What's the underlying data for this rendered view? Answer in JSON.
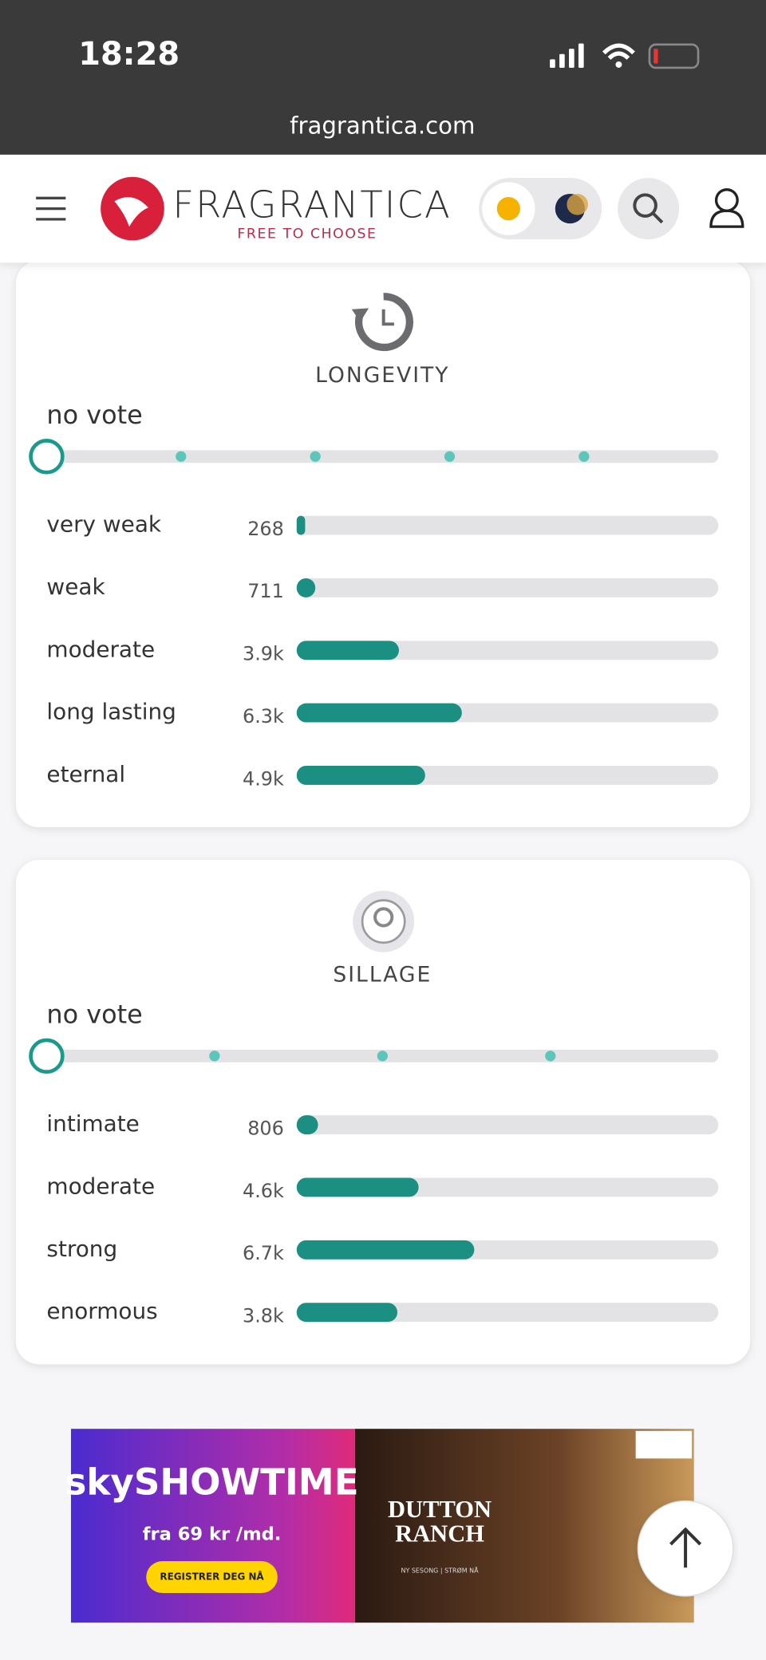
{
  "status_bar": {
    "time": "18:28"
  },
  "browser": {
    "url": "fragrantica.com"
  },
  "header": {
    "brand": "FRAGRANTICA",
    "tagline": "FREE TO CHOOSE"
  },
  "sections": [
    {
      "title": "LONGEVITY",
      "vote_state": "no vote",
      "options": [
        {
          "label": "very weak",
          "votes": 268
        },
        {
          "label": "weak",
          "votes": 711
        },
        {
          "label": "moderate",
          "votes": 3900,
          "votes_label": "3.9k"
        },
        {
          "label": "long lasting",
          "votes": 6300,
          "votes_label": "6.3k"
        },
        {
          "label": "eternal",
          "votes": 4900,
          "votes_label": "4.9k"
        }
      ]
    },
    {
      "title": "SILLAGE",
      "vote_state": "no vote",
      "options": [
        {
          "label": "intimate",
          "votes": 806
        },
        {
          "label": "moderate",
          "votes": 4600,
          "votes_label": "4.6k"
        },
        {
          "label": "strong",
          "votes": 6700,
          "votes_label": "6.7k"
        },
        {
          "label": "enormous",
          "votes": 3800,
          "votes_label": "3.8k"
        }
      ]
    }
  ],
  "ad": {
    "brand": "skySHOWTIME",
    "price": "fra 69 kr /md.",
    "button": "REGISTRER DEG NÅ",
    "show_title": [
      "DUTTON",
      "RANCH"
    ],
    "show_subtitle": "NY SESONG | STRØM NÅ"
  }
}
